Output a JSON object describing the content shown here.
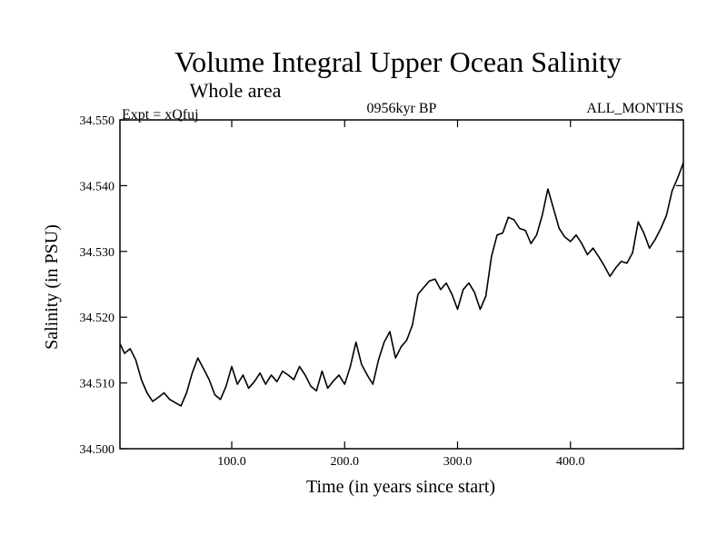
{
  "chart_data": {
    "type": "line",
    "title": "Volume Integral Upper Ocean Salinity",
    "subtitle": "Whole area",
    "experiment_label": "Expt = xQfuj",
    "period_label": "0956kyr BP",
    "months_label": "ALL_MONTHS",
    "xlabel": "Time (in years since start)",
    "ylabel": "Salinity (in PSU)",
    "xlim": [
      1,
      500
    ],
    "ylim": [
      34.5,
      34.55
    ],
    "x_ticks": [
      100,
      200,
      300,
      400
    ],
    "x_tick_labels": [
      "100.0",
      "200.0",
      "300.0",
      "400.0"
    ],
    "y_ticks": [
      34.5,
      34.51,
      34.52,
      34.53,
      34.54,
      34.55
    ],
    "y_tick_labels": [
      "34.500",
      "34.510",
      "34.520",
      "34.530",
      "34.540",
      "34.550"
    ],
    "grid": false,
    "line_color": "#000000",
    "series": [
      {
        "name": "Salinity",
        "x": [
          1,
          5,
          10,
          15,
          20,
          25,
          30,
          35,
          40,
          45,
          50,
          55,
          60,
          65,
          70,
          75,
          80,
          85,
          90,
          95,
          100,
          105,
          110,
          115,
          120,
          125,
          130,
          135,
          140,
          145,
          150,
          155,
          160,
          165,
          170,
          175,
          180,
          185,
          190,
          195,
          200,
          205,
          210,
          215,
          220,
          225,
          230,
          235,
          240,
          245,
          250,
          255,
          260,
          265,
          270,
          275,
          280,
          285,
          290,
          295,
          300,
          305,
          310,
          315,
          320,
          325,
          330,
          335,
          340,
          345,
          350,
          355,
          360,
          365,
          370,
          375,
          380,
          385,
          390,
          395,
          400,
          405,
          410,
          415,
          420,
          425,
          430,
          435,
          440,
          445,
          450,
          455,
          460,
          465,
          470,
          475,
          480,
          485,
          490,
          495,
          500
        ],
        "values": [
          34.516,
          34.5145,
          34.5152,
          34.5135,
          34.5105,
          34.5085,
          34.5072,
          34.5078,
          34.5085,
          34.5075,
          34.507,
          34.5065,
          34.5085,
          34.5115,
          34.5138,
          34.5122,
          34.5105,
          34.5082,
          34.5075,
          34.5095,
          34.5125,
          34.5098,
          34.5112,
          34.5092,
          34.5102,
          34.5115,
          34.5098,
          34.5112,
          34.5102,
          34.5118,
          34.5112,
          34.5105,
          34.5125,
          34.5112,
          34.5095,
          34.5088,
          34.5118,
          34.5092,
          34.5103,
          34.5112,
          34.5098,
          34.5125,
          34.5162,
          34.5128,
          34.5112,
          34.5098,
          34.5135,
          34.5162,
          34.5178,
          34.5138,
          34.5155,
          34.5165,
          34.5188,
          34.5235,
          34.5245,
          34.5255,
          34.5258,
          34.5242,
          34.5252,
          34.5235,
          34.5212,
          34.5242,
          34.5252,
          34.5238,
          34.5212,
          34.5232,
          34.5292,
          34.5325,
          34.5328,
          34.5352,
          34.5348,
          34.5335,
          34.5332,
          34.5312,
          34.5325,
          34.5355,
          34.5395,
          34.5365,
          34.5335,
          34.5322,
          34.5315,
          34.5325,
          34.5312,
          34.5295,
          34.5305,
          34.5292,
          34.5278,
          34.5262,
          34.5275,
          34.5285,
          34.5282,
          34.5298,
          34.5345,
          34.5328,
          34.5305,
          34.5318,
          34.5335,
          34.5355,
          34.5392,
          34.5412,
          34.5435
        ]
      }
    ]
  }
}
